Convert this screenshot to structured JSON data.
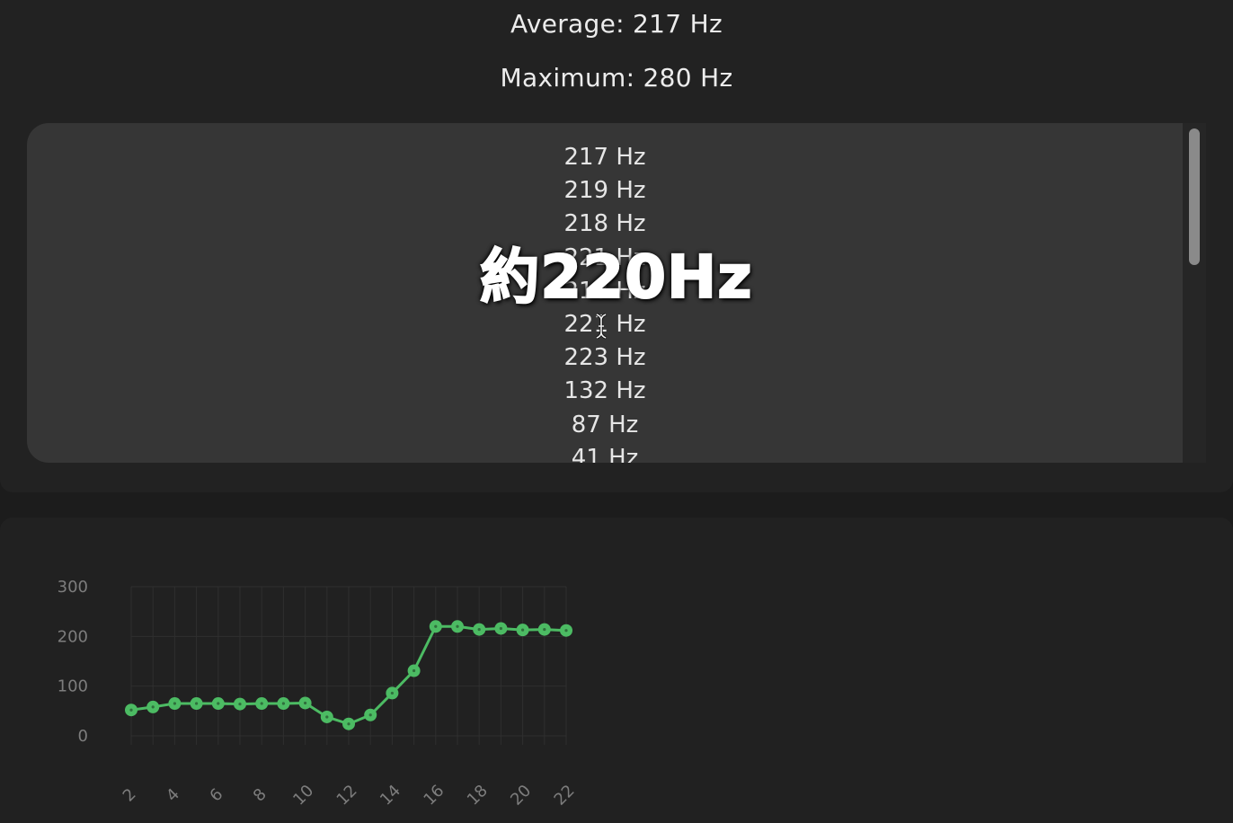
{
  "stats": {
    "average": "Average: 217 Hz",
    "maximum": "Maximum: 280 Hz"
  },
  "readings": [
    "217 Hz",
    "219 Hz",
    "218 Hz",
    "221 Hz",
    "218 Hz",
    "221 Hz",
    "223 Hz",
    "132 Hz",
    "87 Hz",
    "41 Hz"
  ],
  "overlay_caption": "約220Hz",
  "icons": {
    "cursor": "text-cursor-icon"
  },
  "colors": {
    "series": "#4cbb63",
    "background": "#1c1c1c",
    "list_background": "#363636"
  },
  "chart_data": {
    "type": "line",
    "x": [
      2,
      3,
      4,
      5,
      6,
      7,
      8,
      9,
      10,
      11,
      12,
      13,
      14,
      15,
      16,
      17,
      18,
      19,
      20,
      21,
      22
    ],
    "values": [
      52,
      58,
      65,
      65,
      65,
      64,
      65,
      65,
      66,
      38,
      24,
      42,
      86,
      131,
      220,
      220,
      214,
      216,
      213,
      214,
      212
    ],
    "x_ticks": [
      "2",
      "4",
      "6",
      "8",
      "10",
      "12",
      "14",
      "16",
      "18",
      "20",
      "22"
    ],
    "y_ticks": [
      "300",
      "200",
      "100",
      "0"
    ],
    "ylim": [
      0,
      300
    ],
    "xlim": [
      2,
      22
    ],
    "grid": true,
    "title": "",
    "xlabel": "",
    "ylabel": ""
  }
}
